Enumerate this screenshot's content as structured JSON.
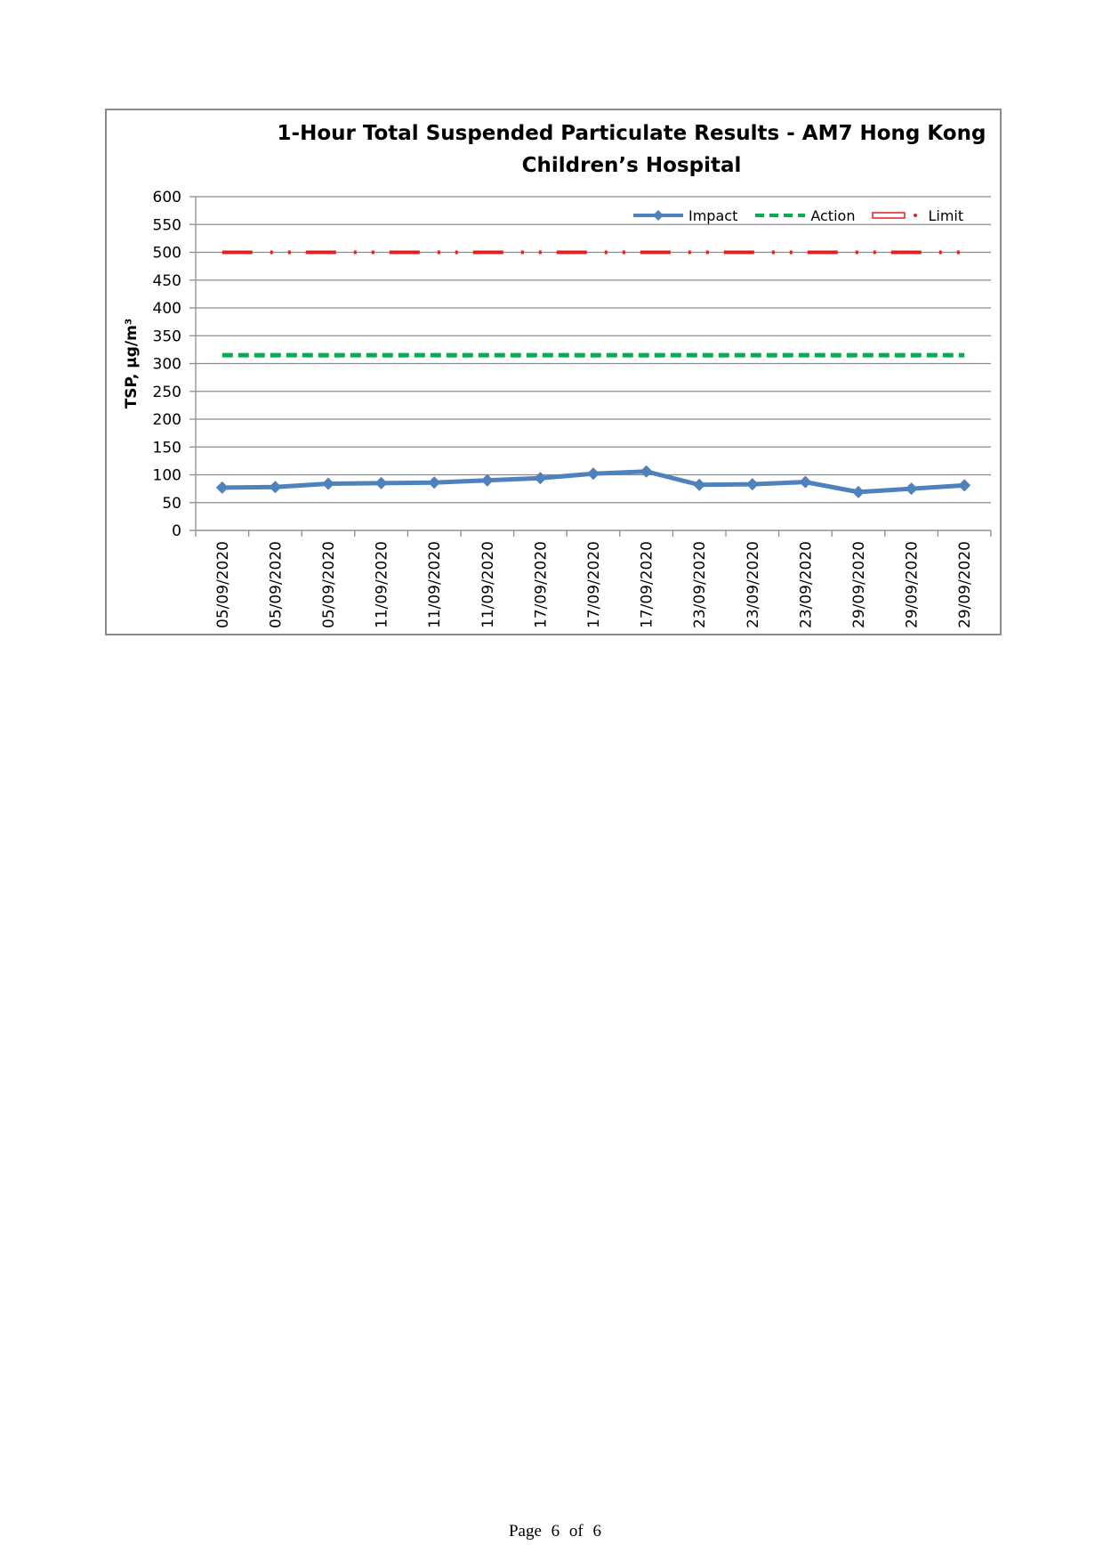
{
  "chart_data": {
    "type": "line",
    "title_line1": "1-Hour Total Suspended Particulate Results - AM7 Hong Kong",
    "title_line2": "Children’s Hospital",
    "xlabel": "",
    "ylabel": "TSP, μg/m³",
    "ylim": [
      0,
      600
    ],
    "yticks": [
      0,
      50,
      100,
      150,
      200,
      250,
      300,
      350,
      400,
      450,
      500,
      550,
      600
    ],
    "grid": true,
    "legend_position": "top-right",
    "categories": [
      "05/09/2020",
      "05/09/2020",
      "05/09/2020",
      "11/09/2020",
      "11/09/2020",
      "11/09/2020",
      "17/09/2020",
      "17/09/2020",
      "17/09/2020",
      "23/09/2020",
      "23/09/2020",
      "23/09/2020",
      "29/09/2020",
      "29/09/2020",
      "29/09/2020"
    ],
    "series": [
      {
        "name": "Impact",
        "color": "#4f81bd",
        "style": "solid-diamond",
        "values": [
          77,
          78,
          84,
          85,
          86,
          90,
          94,
          102,
          106,
          82,
          83,
          87,
          69,
          75,
          81
        ]
      },
      {
        "name": "Action",
        "color": "#00b050",
        "style": "dashed",
        "values": [
          315,
          315,
          315,
          315,
          315,
          315,
          315,
          315,
          315,
          315,
          315,
          315,
          315,
          315,
          315
        ]
      },
      {
        "name": "Limit",
        "color": "#e02020",
        "style": "dash-dot",
        "values": [
          500,
          500,
          500,
          500,
          500,
          500,
          500,
          500,
          500,
          500,
          500,
          500,
          500,
          500,
          500
        ]
      }
    ]
  },
  "footer": {
    "page_word": "Page",
    "page_number": "6",
    "of_word": "of",
    "page_total": "6"
  }
}
